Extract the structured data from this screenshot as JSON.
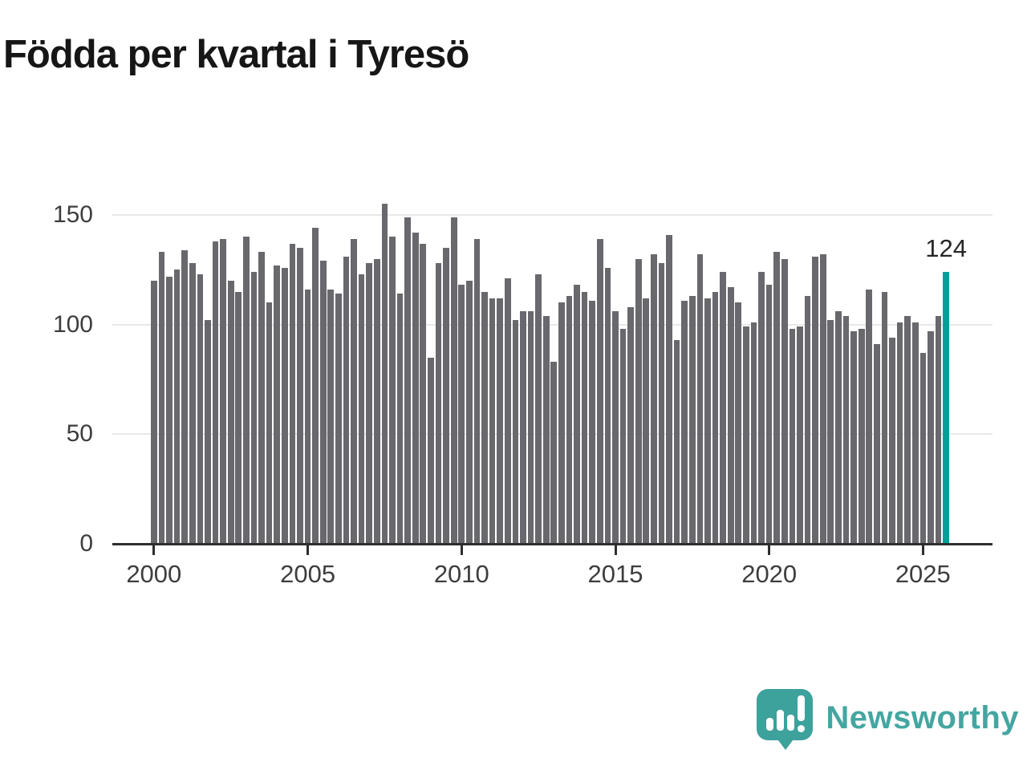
{
  "title": "Födda per kvartal i Tyresö",
  "chart_data": {
    "type": "bar",
    "title": "Födda per kvartal i Tyresö",
    "ylabel": "",
    "xlabel": "",
    "grid": true,
    "y_ticks": [
      0,
      50,
      100,
      150
    ],
    "ylim": [
      0,
      160
    ],
    "x_tick_labels": [
      "2000",
      "2005",
      "2010",
      "2015",
      "2020",
      "2025"
    ],
    "bar_color": "#68686d",
    "highlight_color": "#00a099",
    "highlight_index": 103,
    "highlight_value_label": "124",
    "categories": [
      "2000-Q1",
      "2000-Q2",
      "2000-Q3",
      "2000-Q4",
      "2001-Q1",
      "2001-Q2",
      "2001-Q3",
      "2001-Q4",
      "2002-Q1",
      "2002-Q2",
      "2002-Q3",
      "2002-Q4",
      "2003-Q1",
      "2003-Q2",
      "2003-Q3",
      "2003-Q4",
      "2004-Q1",
      "2004-Q2",
      "2004-Q3",
      "2004-Q4",
      "2005-Q1",
      "2005-Q2",
      "2005-Q3",
      "2005-Q4",
      "2006-Q1",
      "2006-Q2",
      "2006-Q3",
      "2006-Q4",
      "2007-Q1",
      "2007-Q2",
      "2007-Q3",
      "2007-Q4",
      "2008-Q1",
      "2008-Q2",
      "2008-Q3",
      "2008-Q4",
      "2009-Q1",
      "2009-Q2",
      "2009-Q3",
      "2009-Q4",
      "2010-Q1",
      "2010-Q2",
      "2010-Q3",
      "2010-Q4",
      "2011-Q1",
      "2011-Q2",
      "2011-Q3",
      "2011-Q4",
      "2012-Q1",
      "2012-Q2",
      "2012-Q3",
      "2012-Q4",
      "2013-Q1",
      "2013-Q2",
      "2013-Q3",
      "2013-Q4",
      "2014-Q1",
      "2014-Q2",
      "2014-Q3",
      "2014-Q4",
      "2015-Q1",
      "2015-Q2",
      "2015-Q3",
      "2015-Q4",
      "2016-Q1",
      "2016-Q2",
      "2016-Q3",
      "2016-Q4",
      "2017-Q1",
      "2017-Q2",
      "2017-Q3",
      "2017-Q4",
      "2018-Q1",
      "2018-Q2",
      "2018-Q3",
      "2018-Q4",
      "2019-Q1",
      "2019-Q2",
      "2019-Q3",
      "2019-Q4",
      "2020-Q1",
      "2020-Q2",
      "2020-Q3",
      "2020-Q4",
      "2021-Q1",
      "2021-Q2",
      "2021-Q3",
      "2021-Q4",
      "2022-Q1",
      "2022-Q2",
      "2022-Q3",
      "2022-Q4",
      "2023-Q1",
      "2023-Q2",
      "2023-Q3",
      "2023-Q4",
      "2024-Q1",
      "2024-Q2",
      "2024-Q3",
      "2024-Q4",
      "2025-Q1",
      "2025-Q2",
      "2025-Q3",
      "2025-Q4"
    ],
    "values": [
      120,
      133,
      122,
      125,
      134,
      128,
      123,
      102,
      138,
      139,
      120,
      115,
      140,
      124,
      133,
      110,
      127,
      126,
      137,
      135,
      116,
      144,
      129,
      116,
      114,
      131,
      139,
      123,
      128,
      130,
      155,
      140,
      114,
      149,
      142,
      137,
      85,
      128,
      135,
      149,
      118,
      120,
      139,
      115,
      112,
      112,
      121,
      102,
      106,
      106,
      123,
      104,
      83,
      110,
      113,
      118,
      115,
      111,
      139,
      126,
      106,
      98,
      108,
      130,
      112,
      132,
      128,
      141,
      93,
      111,
      113,
      132,
      112,
      115,
      124,
      117,
      110,
      99,
      101,
      124,
      118,
      133,
      130,
      98,
      99,
      113,
      131,
      132,
      102,
      106,
      104,
      97,
      98,
      116,
      91,
      115,
      94,
      101,
      104,
      101,
      87,
      97,
      104,
      124
    ]
  },
  "logo": {
    "text": "Newsworthy",
    "icon": "newsworthy-speech-bubble-chart-icon",
    "brand_color": "#44a6a1"
  }
}
